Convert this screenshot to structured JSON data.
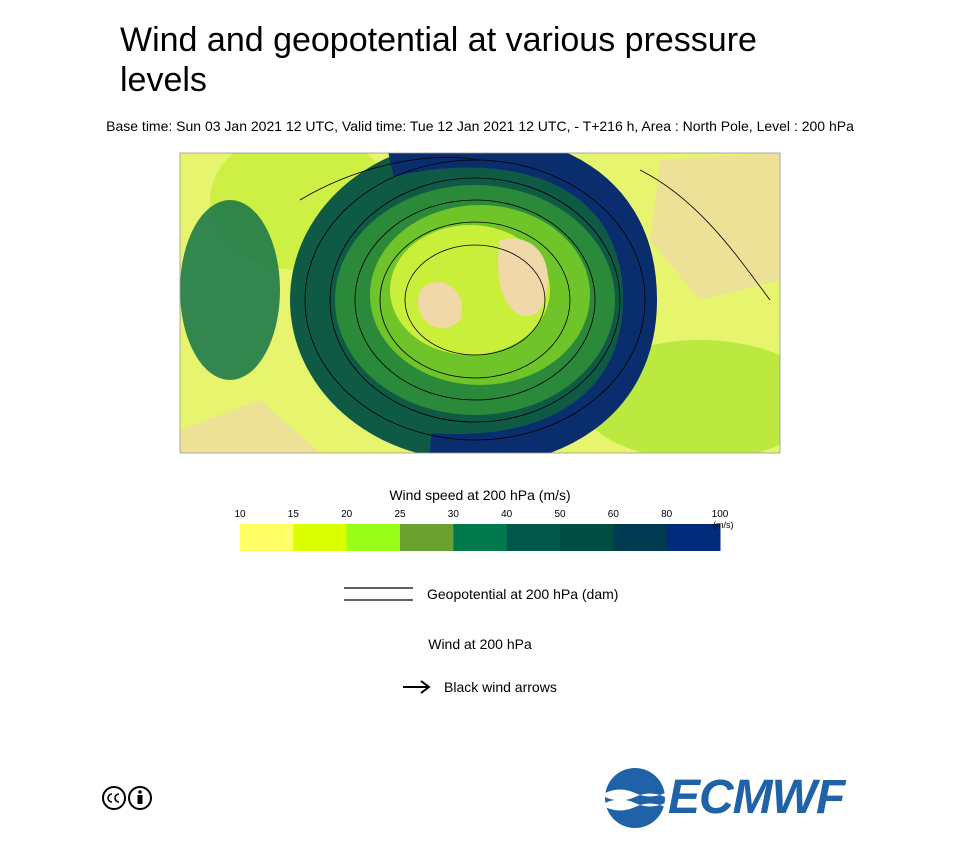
{
  "header": {
    "title": "Wind and geopotential at various pressure levels",
    "subtitle": "Base time: Sun 03 Jan 2021 12 UTC, Valid time: Tue 12 Jan 2021 12 UTC, - T+216 h, Area : North Pole, Level : 200 hPa"
  },
  "colorbar": {
    "title": "Wind speed at 200 hPa (m/s)",
    "unit": "(m/s)",
    "ticks": [
      10,
      15,
      20,
      25,
      30,
      40,
      50,
      60,
      80,
      100
    ],
    "colors": [
      "#ffff66",
      "#d9ff00",
      "#99ff1a",
      "#6aa030",
      "#007a4d",
      "#00574a",
      "#004d44",
      "#003a50",
      "#002a7a"
    ]
  },
  "legend": {
    "geopotential": "Geopotential at 200 hPa (dam)",
    "wind_title": "Wind at 200 hPa",
    "wind_arrows": "Black wind arrows"
  },
  "footer": {
    "logo": "ECMWF"
  }
}
